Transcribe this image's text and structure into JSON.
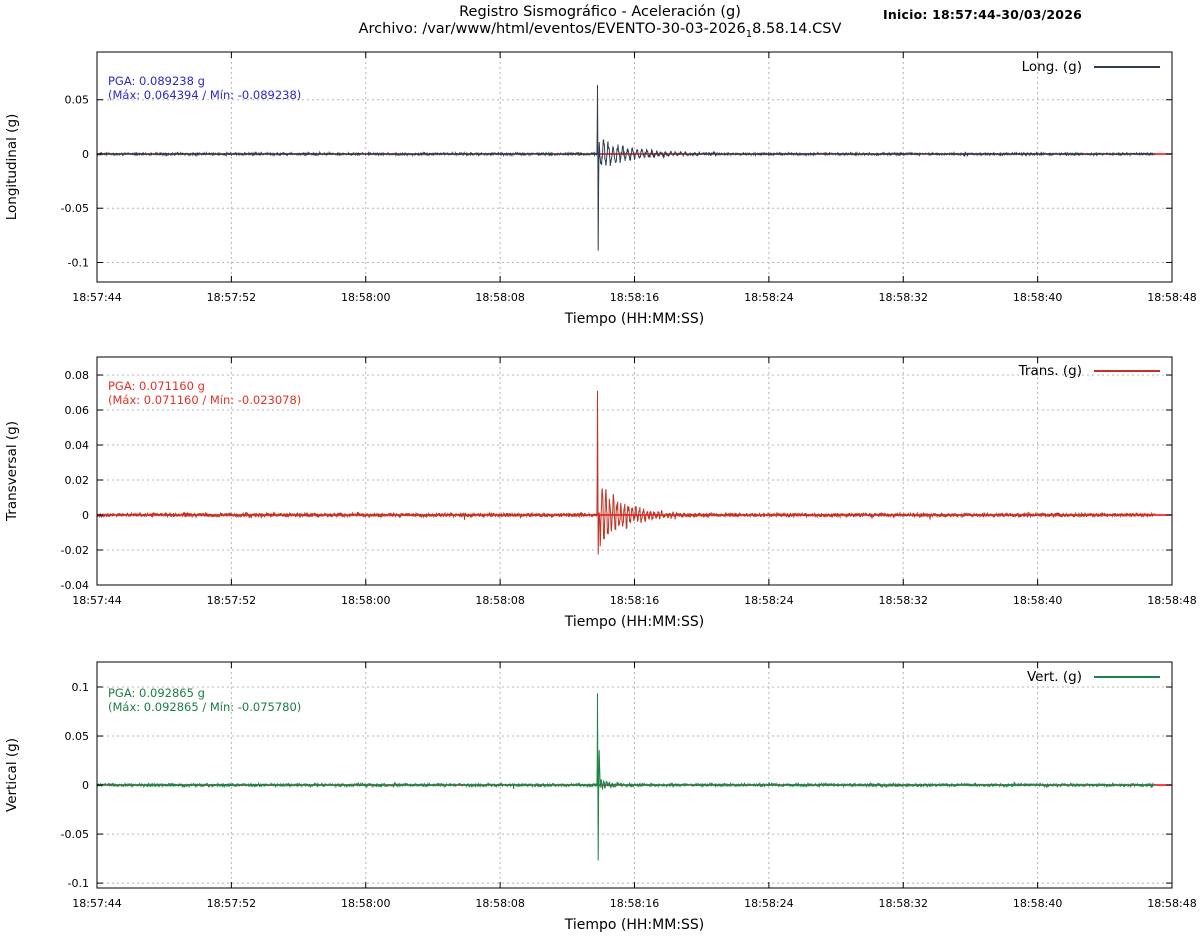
{
  "header": {
    "title": "Registro Sismográfico - Aceleración (g)",
    "subtitle_prefix": "Archivo: /var/www/html/eventos/EVENTO-30-03-2026",
    "subtitle_sub": "1",
    "subtitle_suffix": "8.58.14.CSV",
    "inicio_label": "Inicio: 18:57:44-30/03/2026"
  },
  "colors": {
    "baseline": "#ff0000",
    "grid": "#b5b5b5",
    "axis": "#000000"
  },
  "chart_data": [
    {
      "type": "line",
      "ylabel": "Longitudinal (g)",
      "xlabel": "Tiempo (HH:MM:SS)",
      "legend": "Long. (g)",
      "legend_position": "top-right",
      "color": "#2e3e50",
      "annotation_color": "#2929cc",
      "annotation_line1": "PGA: 0.089238 g",
      "annotation_line2": "(Máx: 0.064394 / Mín: -0.089238)",
      "pga": 0.089238,
      "max": 0.064394,
      "min": -0.089238,
      "grid": true,
      "ylim": [
        -0.118,
        0.094
      ],
      "y_ticks": [
        {
          "v": 0.05,
          "label": "0.05"
        },
        {
          "v": 0,
          "label": "0"
        },
        {
          "v": -0.05,
          "label": "-0.05"
        },
        {
          "v": -0.1,
          "label": "-0.1"
        }
      ],
      "x_ticks": [
        {
          "s": 0,
          "label": "18:57:44"
        },
        {
          "s": 8,
          "label": "18:57:52"
        },
        {
          "s": 16,
          "label": "18:58:00"
        },
        {
          "s": 24,
          "label": "18:58:08"
        },
        {
          "s": 32,
          "label": "18:58:16"
        },
        {
          "s": 40,
          "label": "18:58:24"
        },
        {
          "s": 48,
          "label": "18:58:32"
        },
        {
          "s": 56,
          "label": "18:58:40"
        },
        {
          "s": 64,
          "label": "18:58:48"
        }
      ],
      "x_span_s": 64,
      "trace_end_s": 63.0,
      "seed": 11,
      "noise_amp": 0.0009,
      "event": {
        "time_s": 29.8,
        "peak_up": 0.064394,
        "up_width": 0.03,
        "peak_down": -0.089238,
        "down_offset": 0.04,
        "down_width": 0.03
      },
      "tail": {
        "amplitude": 0.013,
        "decay_s": 1.8,
        "freq_hz": 3.5,
        "noise": 0.004,
        "noise_decay_s": 3.5
      }
    },
    {
      "type": "line",
      "ylabel": "Transversal (g)",
      "xlabel": "Tiempo (HH:MM:SS)",
      "legend": "Trans. (g)",
      "legend_position": "top-right",
      "color": "#c03425",
      "annotation_color": "#e03227",
      "annotation_line1": "PGA: 0.071160 g",
      "annotation_line2": "(Máx: 0.071160 / Mín: -0.023078)",
      "pga": 0.07116,
      "max": 0.07116,
      "min": -0.023078,
      "grid": true,
      "ylim": [
        -0.04,
        0.0903
      ],
      "y_ticks": [
        {
          "v": 0.08,
          "label": "0.08"
        },
        {
          "v": 0.06,
          "label": "0.06"
        },
        {
          "v": 0.04,
          "label": "0.04"
        },
        {
          "v": 0.02,
          "label": "0.02"
        },
        {
          "v": 0,
          "label": "0"
        },
        {
          "v": -0.02,
          "label": "-0.02"
        },
        {
          "v": -0.04,
          "label": "-0.04"
        }
      ],
      "x_ticks": [
        {
          "s": 0,
          "label": "18:57:44"
        },
        {
          "s": 8,
          "label": "18:57:52"
        },
        {
          "s": 16,
          "label": "18:58:00"
        },
        {
          "s": 24,
          "label": "18:58:08"
        },
        {
          "s": 32,
          "label": "18:58:16"
        },
        {
          "s": 40,
          "label": "18:58:24"
        },
        {
          "s": 48,
          "label": "18:58:32"
        },
        {
          "s": 56,
          "label": "18:58:40"
        },
        {
          "s": 64,
          "label": "18:58:48"
        }
      ],
      "x_span_s": 64,
      "trace_end_s": 63.0,
      "seed": 22,
      "noise_amp": 0.001,
      "event": {
        "time_s": 29.8,
        "peak_up": 0.07116,
        "up_width": 0.03,
        "peak_down": -0.023078,
        "down_offset": 0.04,
        "down_width": 0.03
      },
      "tail": {
        "amplitude": 0.016,
        "decay_s": 1.5,
        "freq_hz": 4.5,
        "noise": 0.005,
        "noise_decay_s": 2.5
      }
    },
    {
      "type": "line",
      "ylabel": "Vertical (g)",
      "xlabel": "Tiempo (HH:MM:SS)",
      "legend": "Vert. (g)",
      "legend_position": "top-right",
      "color": "#1e8449",
      "annotation_color": "#1b7e43",
      "annotation_line1": "PGA: 0.092865 g",
      "annotation_line2": "(Máx: 0.092865 / Mín: -0.075780)",
      "pga": 0.092865,
      "max": 0.092865,
      "min": -0.07578,
      "grid": true,
      "ylim": [
        -0.105,
        0.1255
      ],
      "y_ticks": [
        {
          "v": 0.1,
          "label": "0.1"
        },
        {
          "v": 0.05,
          "label": "0.05"
        },
        {
          "v": 0,
          "label": "0"
        },
        {
          "v": -0.05,
          "label": "-0.05"
        },
        {
          "v": -0.1,
          "label": "-0.1"
        }
      ],
      "x_ticks": [
        {
          "s": 0,
          "label": "18:57:44"
        },
        {
          "s": 8,
          "label": "18:57:52"
        },
        {
          "s": 16,
          "label": "18:58:00"
        },
        {
          "s": 24,
          "label": "18:58:08"
        },
        {
          "s": 32,
          "label": "18:58:16"
        },
        {
          "s": 40,
          "label": "18:58:24"
        },
        {
          "s": 48,
          "label": "18:58:32"
        },
        {
          "s": 56,
          "label": "18:58:40"
        },
        {
          "s": 64,
          "label": "18:58:48"
        }
      ],
      "x_span_s": 64,
      "trace_end_s": 63.0,
      "seed": 33,
      "noise_amp": 0.0013,
      "event": {
        "time_s": 29.8,
        "peak_up": 0.092865,
        "up_width": 0.025,
        "peak_down": -0.07578,
        "down_offset": 0.04,
        "down_width": 0.03,
        "bump_amp": 0.04,
        "bump_offset": 0.1,
        "bump_width": 0.06
      },
      "tail": {
        "amplitude": 0.006,
        "decay_s": 0.6,
        "freq_hz": 6,
        "noise": 0.0035,
        "noise_decay_s": 1.2
      }
    }
  ]
}
